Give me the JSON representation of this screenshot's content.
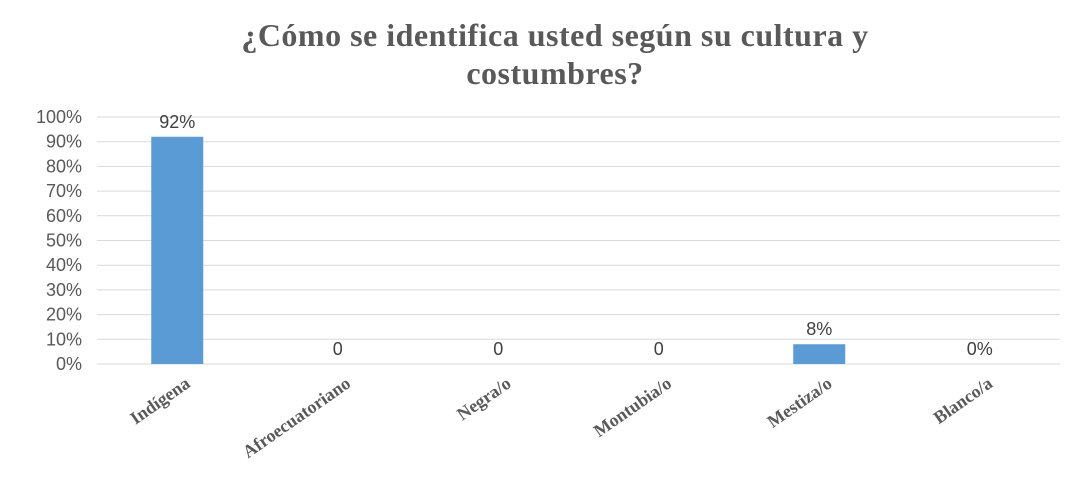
{
  "chart_data": {
    "type": "bar",
    "title_lines": [
      "¿Cómo se identifica usted según su cultura y",
      "costumbres?"
    ],
    "categories": [
      "Indígena",
      "Afroecuatoriano",
      "Negra/o",
      "Montubia/o",
      "Mestiza/o",
      "Blanco/a"
    ],
    "values": [
      92,
      0,
      0,
      0,
      8,
      0
    ],
    "data_labels": [
      "92%",
      "0",
      "0",
      "0",
      "8%",
      "0%"
    ],
    "y_ticks": [
      "0%",
      "10%",
      "20%",
      "30%",
      "40%",
      "50%",
      "60%",
      "70%",
      "80%",
      "90%",
      "100%"
    ],
    "ylim": [
      0,
      100
    ],
    "xlabel": "",
    "ylabel": "",
    "grid": true,
    "legend": "none",
    "bar_color": "#5b9bd5"
  }
}
